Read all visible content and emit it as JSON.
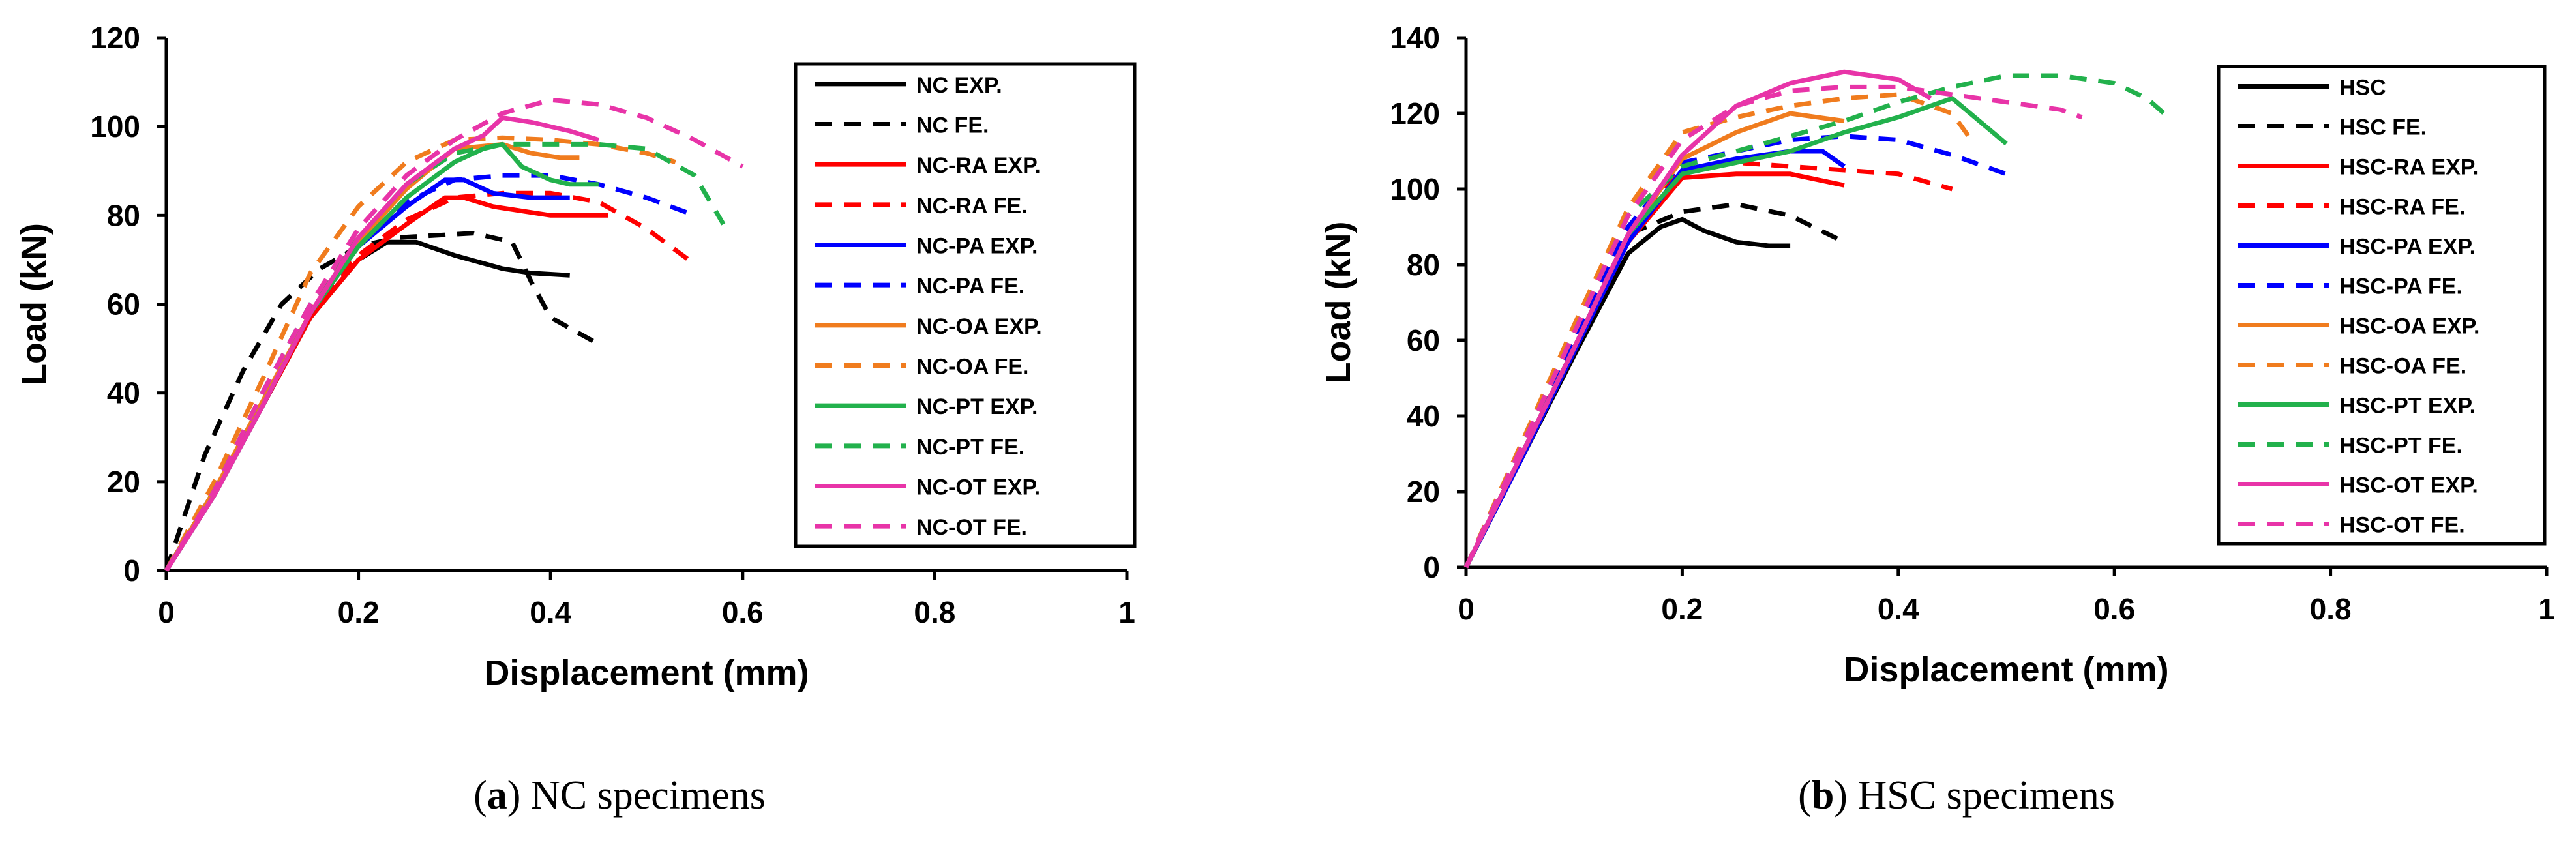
{
  "chart_data": [
    {
      "type": "line",
      "xlabel": "Displacement (mm)",
      "ylabel": "Load (kN)",
      "xlim": [
        0,
        1
      ],
      "ylim": [
        0,
        120
      ],
      "xticks": [
        "0",
        "0.2",
        "0.4",
        "0.6",
        "0.8",
        "1"
      ],
      "yticks": [
        "0",
        "20",
        "40",
        "60",
        "80",
        "100",
        "120"
      ],
      "legend": "top-right",
      "caption_letter": "a",
      "caption_text": "NC specimens",
      "series": [
        {
          "name": "NC EXP.",
          "color": "#000000",
          "dash": false,
          "x": [
            0,
            0.05,
            0.1,
            0.15,
            0.2,
            0.23,
            0.26,
            0.3,
            0.35,
            0.38,
            0.42
          ],
          "y": [
            0,
            18,
            37,
            57,
            70,
            74,
            74,
            71,
            68,
            67,
            66.5
          ]
        },
        {
          "name": "NC FE.",
          "color": "#000000",
          "dash": true,
          "x": [
            0,
            0.04,
            0.08,
            0.12,
            0.16,
            0.2,
            0.24,
            0.28,
            0.32,
            0.36,
            0.38,
            0.4,
            0.45
          ],
          "y": [
            0,
            26,
            45,
            60,
            68,
            73,
            75,
            75.5,
            76,
            74,
            65,
            57,
            51
          ]
        },
        {
          "name": "NC-RA EXP.",
          "color": "#ff0000",
          "dash": false,
          "x": [
            0,
            0.05,
            0.1,
            0.15,
            0.2,
            0.25,
            0.29,
            0.31,
            0.34,
            0.4,
            0.46
          ],
          "y": [
            0,
            17,
            37,
            57,
            70,
            78,
            84,
            84,
            82,
            80,
            80
          ]
        },
        {
          "name": "NC-RA FE.",
          "color": "#ff0000",
          "dash": true,
          "x": [
            0,
            0.05,
            0.1,
            0.15,
            0.2,
            0.25,
            0.3,
            0.35,
            0.4,
            0.45,
            0.5,
            0.55
          ],
          "y": [
            0,
            18,
            40,
            59,
            71,
            79,
            84,
            85,
            85,
            83,
            77,
            69
          ]
        },
        {
          "name": "NC-PA EXP.",
          "color": "#0000ff",
          "dash": false,
          "x": [
            0,
            0.05,
            0.1,
            0.15,
            0.2,
            0.25,
            0.29,
            0.31,
            0.34,
            0.38,
            0.42
          ],
          "y": [
            0,
            17,
            37,
            58,
            73,
            82,
            88,
            88,
            85,
            84,
            84
          ]
        },
        {
          "name": "NC-PA FE.",
          "color": "#0000ff",
          "dash": true,
          "x": [
            0,
            0.05,
            0.1,
            0.15,
            0.2,
            0.25,
            0.3,
            0.35,
            0.4,
            0.45,
            0.5,
            0.55
          ],
          "y": [
            0,
            18,
            40,
            60,
            74,
            83,
            88,
            89,
            89,
            87,
            84,
            80
          ]
        },
        {
          "name": "NC-OA EXP.",
          "color": "#f07c1e",
          "dash": false,
          "x": [
            0,
            0.05,
            0.1,
            0.15,
            0.2,
            0.25,
            0.3,
            0.35,
            0.38,
            0.41,
            0.43
          ],
          "y": [
            0,
            18,
            38,
            58,
            74,
            86,
            95,
            96,
            94,
            93,
            93
          ]
        },
        {
          "name": "NC-OA FE.",
          "color": "#f07c1e",
          "dash": true,
          "x": [
            0,
            0.05,
            0.1,
            0.15,
            0.2,
            0.25,
            0.3,
            0.35,
            0.4,
            0.45,
            0.5,
            0.53
          ],
          "y": [
            0,
            20,
            43,
            67,
            82,
            92,
            97,
            97.5,
            97,
            96,
            94,
            92
          ]
        },
        {
          "name": "NC-PT EXP.",
          "color": "#22b14c",
          "dash": false,
          "x": [
            0,
            0.05,
            0.1,
            0.15,
            0.2,
            0.25,
            0.3,
            0.33,
            0.35,
            0.37,
            0.4,
            0.42,
            0.45
          ],
          "y": [
            0,
            17,
            37,
            58,
            73,
            84,
            92,
            95,
            96,
            91,
            88,
            87,
            87
          ]
        },
        {
          "name": "NC-PT FE.",
          "color": "#22b14c",
          "dash": true,
          "x": [
            0,
            0.05,
            0.1,
            0.15,
            0.2,
            0.25,
            0.3,
            0.35,
            0.4,
            0.45,
            0.5,
            0.55,
            0.58
          ],
          "y": [
            0,
            18,
            40,
            60,
            75,
            87,
            94,
            96,
            96,
            96,
            95,
            89,
            78
          ]
        },
        {
          "name": "NC-OT EXP.",
          "color": "#e834a8",
          "dash": false,
          "x": [
            0,
            0.05,
            0.1,
            0.15,
            0.2,
            0.25,
            0.3,
            0.33,
            0.35,
            0.38,
            0.42,
            0.45
          ],
          "y": [
            0,
            17,
            37,
            58,
            75,
            87,
            95,
            98,
            102,
            101,
            99,
            97
          ]
        },
        {
          "name": "NC-OT FE.",
          "color": "#e834a8",
          "dash": true,
          "x": [
            0,
            0.05,
            0.1,
            0.15,
            0.2,
            0.25,
            0.3,
            0.35,
            0.4,
            0.45,
            0.5,
            0.55,
            0.6
          ],
          "y": [
            0,
            18,
            40,
            60,
            77,
            89,
            97,
            103,
            106,
            105,
            102,
            97,
            91
          ]
        }
      ]
    },
    {
      "type": "line",
      "xlabel": "Displacement (mm)",
      "ylabel": "Load (kN)",
      "xlim": [
        0,
        1
      ],
      "ylim": [
        0,
        140
      ],
      "xticks": [
        "0",
        "0.2",
        "0.4",
        "0.6",
        "0.8",
        "1"
      ],
      "yticks": [
        "0",
        "20",
        "40",
        "60",
        "80",
        "100",
        "120",
        "140"
      ],
      "legend": "top-right",
      "caption_letter": "b",
      "caption_text": "HSC specimens",
      "series": [
        {
          "name": "HSC",
          "color": "#000000",
          "dash": false,
          "x": [
            0,
            0.05,
            0.1,
            0.15,
            0.18,
            0.2,
            0.22,
            0.25,
            0.28,
            0.3
          ],
          "y": [
            0,
            28,
            56,
            83,
            90,
            92,
            89,
            86,
            85,
            85
          ]
        },
        {
          "name": "HSC FE.",
          "color": "#000000",
          "dash": true,
          "x": [
            0,
            0.05,
            0.1,
            0.15,
            0.2,
            0.25,
            0.3,
            0.35
          ],
          "y": [
            0,
            30,
            60,
            88,
            94,
            96,
            93,
            86
          ]
        },
        {
          "name": "HSC-RA EXP.",
          "color": "#ff0000",
          "dash": false,
          "x": [
            0,
            0.05,
            0.1,
            0.15,
            0.2,
            0.25,
            0.3,
            0.35
          ],
          "y": [
            0,
            28,
            57,
            86,
            103,
            104,
            104,
            101
          ]
        },
        {
          "name": "HSC-RA FE.",
          "color": "#ff0000",
          "dash": true,
          "x": [
            0,
            0.05,
            0.1,
            0.15,
            0.2,
            0.25,
            0.3,
            0.35,
            0.4,
            0.45
          ],
          "y": [
            0,
            30,
            60,
            90,
            105,
            107,
            106,
            105,
            104,
            100
          ]
        },
        {
          "name": "HSC-PA EXP.",
          "color": "#0000ff",
          "dash": false,
          "x": [
            0,
            0.05,
            0.1,
            0.15,
            0.2,
            0.25,
            0.3,
            0.33,
            0.35
          ],
          "y": [
            0,
            28,
            57,
            86,
            105,
            108,
            110,
            110,
            106
          ]
        },
        {
          "name": "HSC-PA FE.",
          "color": "#0000ff",
          "dash": true,
          "x": [
            0,
            0.05,
            0.1,
            0.15,
            0.2,
            0.25,
            0.3,
            0.35,
            0.4,
            0.45,
            0.5
          ],
          "y": [
            0,
            30,
            60,
            90,
            107,
            110,
            113,
            114,
            113,
            109,
            104
          ]
        },
        {
          "name": "HSC-OA EXP.",
          "color": "#f07c1e",
          "dash": false,
          "x": [
            0,
            0.05,
            0.1,
            0.15,
            0.2,
            0.25,
            0.3,
            0.35
          ],
          "y": [
            0,
            29,
            58,
            88,
            108,
            115,
            120,
            118
          ]
        },
        {
          "name": "HSC-OA FE.",
          "color": "#f07c1e",
          "dash": true,
          "x": [
            0,
            0.05,
            0.1,
            0.15,
            0.2,
            0.25,
            0.3,
            0.35,
            0.4,
            0.45,
            0.47
          ],
          "y": [
            0,
            32,
            64,
            95,
            115,
            119,
            122,
            124,
            125,
            120,
            112
          ]
        },
        {
          "name": "HSC-PT EXP.",
          "color": "#22b14c",
          "dash": false,
          "x": [
            0,
            0.05,
            0.1,
            0.15,
            0.2,
            0.25,
            0.3,
            0.35,
            0.4,
            0.45,
            0.5
          ],
          "y": [
            0,
            29,
            58,
            88,
            104,
            107,
            110,
            115,
            119,
            124,
            112
          ]
        },
        {
          "name": "HSC-PT FE.",
          "color": "#22b14c",
          "dash": true,
          "x": [
            0,
            0.05,
            0.1,
            0.15,
            0.2,
            0.25,
            0.3,
            0.35,
            0.4,
            0.45,
            0.5,
            0.55,
            0.6,
            0.63,
            0.65
          ],
          "y": [
            0,
            31,
            62,
            93,
            106,
            110,
            114,
            118,
            123,
            127,
            130,
            130,
            128,
            124,
            119
          ]
        },
        {
          "name": "HSC-OT EXP.",
          "color": "#e834a8",
          "dash": false,
          "x": [
            0,
            0.05,
            0.1,
            0.15,
            0.2,
            0.25,
            0.3,
            0.35,
            0.4,
            0.43
          ],
          "y": [
            0,
            29,
            58,
            88,
            109,
            122,
            128,
            131,
            129,
            124
          ]
        },
        {
          "name": "HSC-OT FE.",
          "color": "#e834a8",
          "dash": true,
          "x": [
            0,
            0.05,
            0.1,
            0.15,
            0.2,
            0.25,
            0.3,
            0.35,
            0.4,
            0.45,
            0.5,
            0.55,
            0.57
          ],
          "y": [
            0,
            31,
            62,
            93,
            113,
            122,
            126,
            127,
            127,
            125,
            123,
            121,
            119
          ]
        }
      ]
    }
  ]
}
